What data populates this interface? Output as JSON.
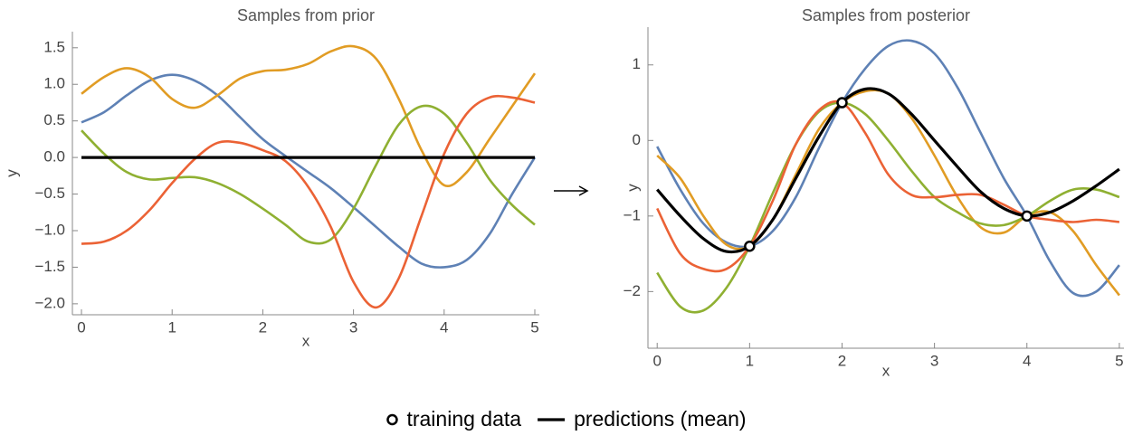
{
  "chart_data": [
    {
      "type": "line",
      "title": "Samples from prior",
      "xlabel": "x",
      "ylabel": "y",
      "x": [
        0,
        0.25,
        0.5,
        0.75,
        1,
        1.25,
        1.5,
        1.75,
        2,
        2.25,
        2.5,
        2.75,
        3,
        3.25,
        3.5,
        3.75,
        4,
        4.25,
        4.5,
        4.75,
        5
      ],
      "series": [
        {
          "color": "#5E81B5",
          "values": [
            0.48,
            0.62,
            0.85,
            1.05,
            1.13,
            1.05,
            0.85,
            0.55,
            0.25,
            0.02,
            -0.2,
            -0.42,
            -0.68,
            -0.95,
            -1.22,
            -1.45,
            -1.5,
            -1.4,
            -1.05,
            -0.5,
            0.0
          ]
        },
        {
          "color": "#E19C24",
          "values": [
            0.87,
            1.1,
            1.22,
            1.1,
            0.8,
            0.68,
            0.85,
            1.08,
            1.18,
            1.2,
            1.28,
            1.45,
            1.52,
            1.35,
            0.8,
            0.1,
            -0.38,
            -0.2,
            0.25,
            0.7,
            1.15
          ]
        },
        {
          "color": "#8FB032",
          "values": [
            0.37,
            0.05,
            -0.2,
            -0.3,
            -0.28,
            -0.27,
            -0.35,
            -0.5,
            -0.7,
            -0.92,
            -1.15,
            -1.12,
            -0.7,
            -0.1,
            0.45,
            0.7,
            0.6,
            0.2,
            -0.3,
            -0.65,
            -0.92
          ]
        },
        {
          "color": "#EB6235",
          "values": [
            -1.18,
            -1.15,
            -1.0,
            -0.72,
            -0.35,
            -0.02,
            0.2,
            0.2,
            0.1,
            -0.05,
            -0.4,
            -0.95,
            -1.7,
            -2.05,
            -1.65,
            -0.8,
            0.05,
            0.6,
            0.82,
            0.82,
            0.75
          ]
        },
        {
          "color": "#000000",
          "values": [
            0,
            0,
            0,
            0,
            0,
            0,
            0,
            0,
            0,
            0,
            0,
            0,
            0,
            0,
            0,
            0,
            0,
            0,
            0,
            0,
            0
          ]
        }
      ],
      "xlim": [
        -0.1,
        5.05
      ],
      "ylim": [
        -2.15,
        1.72
      ],
      "xticks": [
        0,
        1,
        2,
        3,
        4,
        5
      ],
      "yticks": [
        {
          "value": -2,
          "label": "−2.0"
        },
        {
          "value": -1.5,
          "label": "−1.5"
        },
        {
          "value": -1,
          "label": "−1.0"
        },
        {
          "value": -0.5,
          "label": "−0.5"
        },
        {
          "value": 0,
          "label": "0.0"
        },
        0.5,
        {
          "value": 1,
          "label": "1.0"
        },
        1.5
      ]
    },
    {
      "type": "line",
      "title": "Samples from posterior",
      "xlabel": "x",
      "ylabel": "y",
      "x": [
        0,
        0.25,
        0.5,
        0.75,
        1,
        1.25,
        1.5,
        1.75,
        2,
        2.25,
        2.5,
        2.75,
        3,
        3.25,
        3.5,
        3.75,
        4,
        4.25,
        4.5,
        4.75,
        5
      ],
      "series": [
        {
          "color": "#5E81B5",
          "values": [
            -0.08,
            -0.65,
            -1.1,
            -1.35,
            -1.4,
            -1.2,
            -0.75,
            -0.1,
            0.5,
            0.95,
            1.25,
            1.32,
            1.15,
            0.7,
            0.1,
            -0.5,
            -1.0,
            -1.6,
            -2.02,
            -2.0,
            -1.65
          ]
        },
        {
          "color": "#E19C24",
          "values": [
            -0.2,
            -0.5,
            -1.0,
            -1.38,
            -1.4,
            -1.05,
            -0.45,
            0.15,
            0.5,
            0.65,
            0.62,
            0.3,
            -0.2,
            -0.75,
            -1.15,
            -1.22,
            -1.0,
            -0.95,
            -1.2,
            -1.65,
            -2.05
          ]
        },
        {
          "color": "#8FB032",
          "values": [
            -1.75,
            -2.2,
            -2.25,
            -1.95,
            -1.4,
            -0.7,
            -0.05,
            0.38,
            0.5,
            0.35,
            0.0,
            -0.4,
            -0.75,
            -0.95,
            -1.1,
            -1.12,
            -1.0,
            -0.8,
            -0.65,
            -0.65,
            -0.75
          ]
        },
        {
          "color": "#EB6235",
          "values": [
            -0.9,
            -1.5,
            -1.7,
            -1.7,
            -1.4,
            -0.8,
            -0.05,
            0.4,
            0.5,
            0.1,
            -0.45,
            -0.72,
            -0.75,
            -0.72,
            -0.72,
            -0.85,
            -1.0,
            -1.05,
            -1.08,
            -1.05,
            -1.08
          ]
        },
        {
          "name": "predictions (mean)",
          "color": "#000000",
          "values": [
            -0.65,
            -1.0,
            -1.3,
            -1.47,
            -1.4,
            -1.05,
            -0.5,
            0.05,
            0.5,
            0.68,
            0.62,
            0.35,
            0.0,
            -0.35,
            -0.68,
            -0.9,
            -1.0,
            -0.95,
            -0.8,
            -0.6,
            -0.38
          ]
        },
        {
          "name": "training data",
          "type": "scatter",
          "color": "#000000",
          "x": [
            1,
            2,
            4
          ],
          "values": [
            -1.4,
            0.5,
            -1.0
          ]
        }
      ],
      "xlim": [
        -0.1,
        5.05
      ],
      "ylim": [
        -2.75,
        1.5
      ],
      "xticks": [
        0,
        1,
        2,
        3,
        4,
        5
      ],
      "yticks": [
        {
          "value": -2,
          "label": "−2"
        },
        {
          "value": -1,
          "label": "−1"
        },
        0,
        1
      ]
    }
  ]
}
